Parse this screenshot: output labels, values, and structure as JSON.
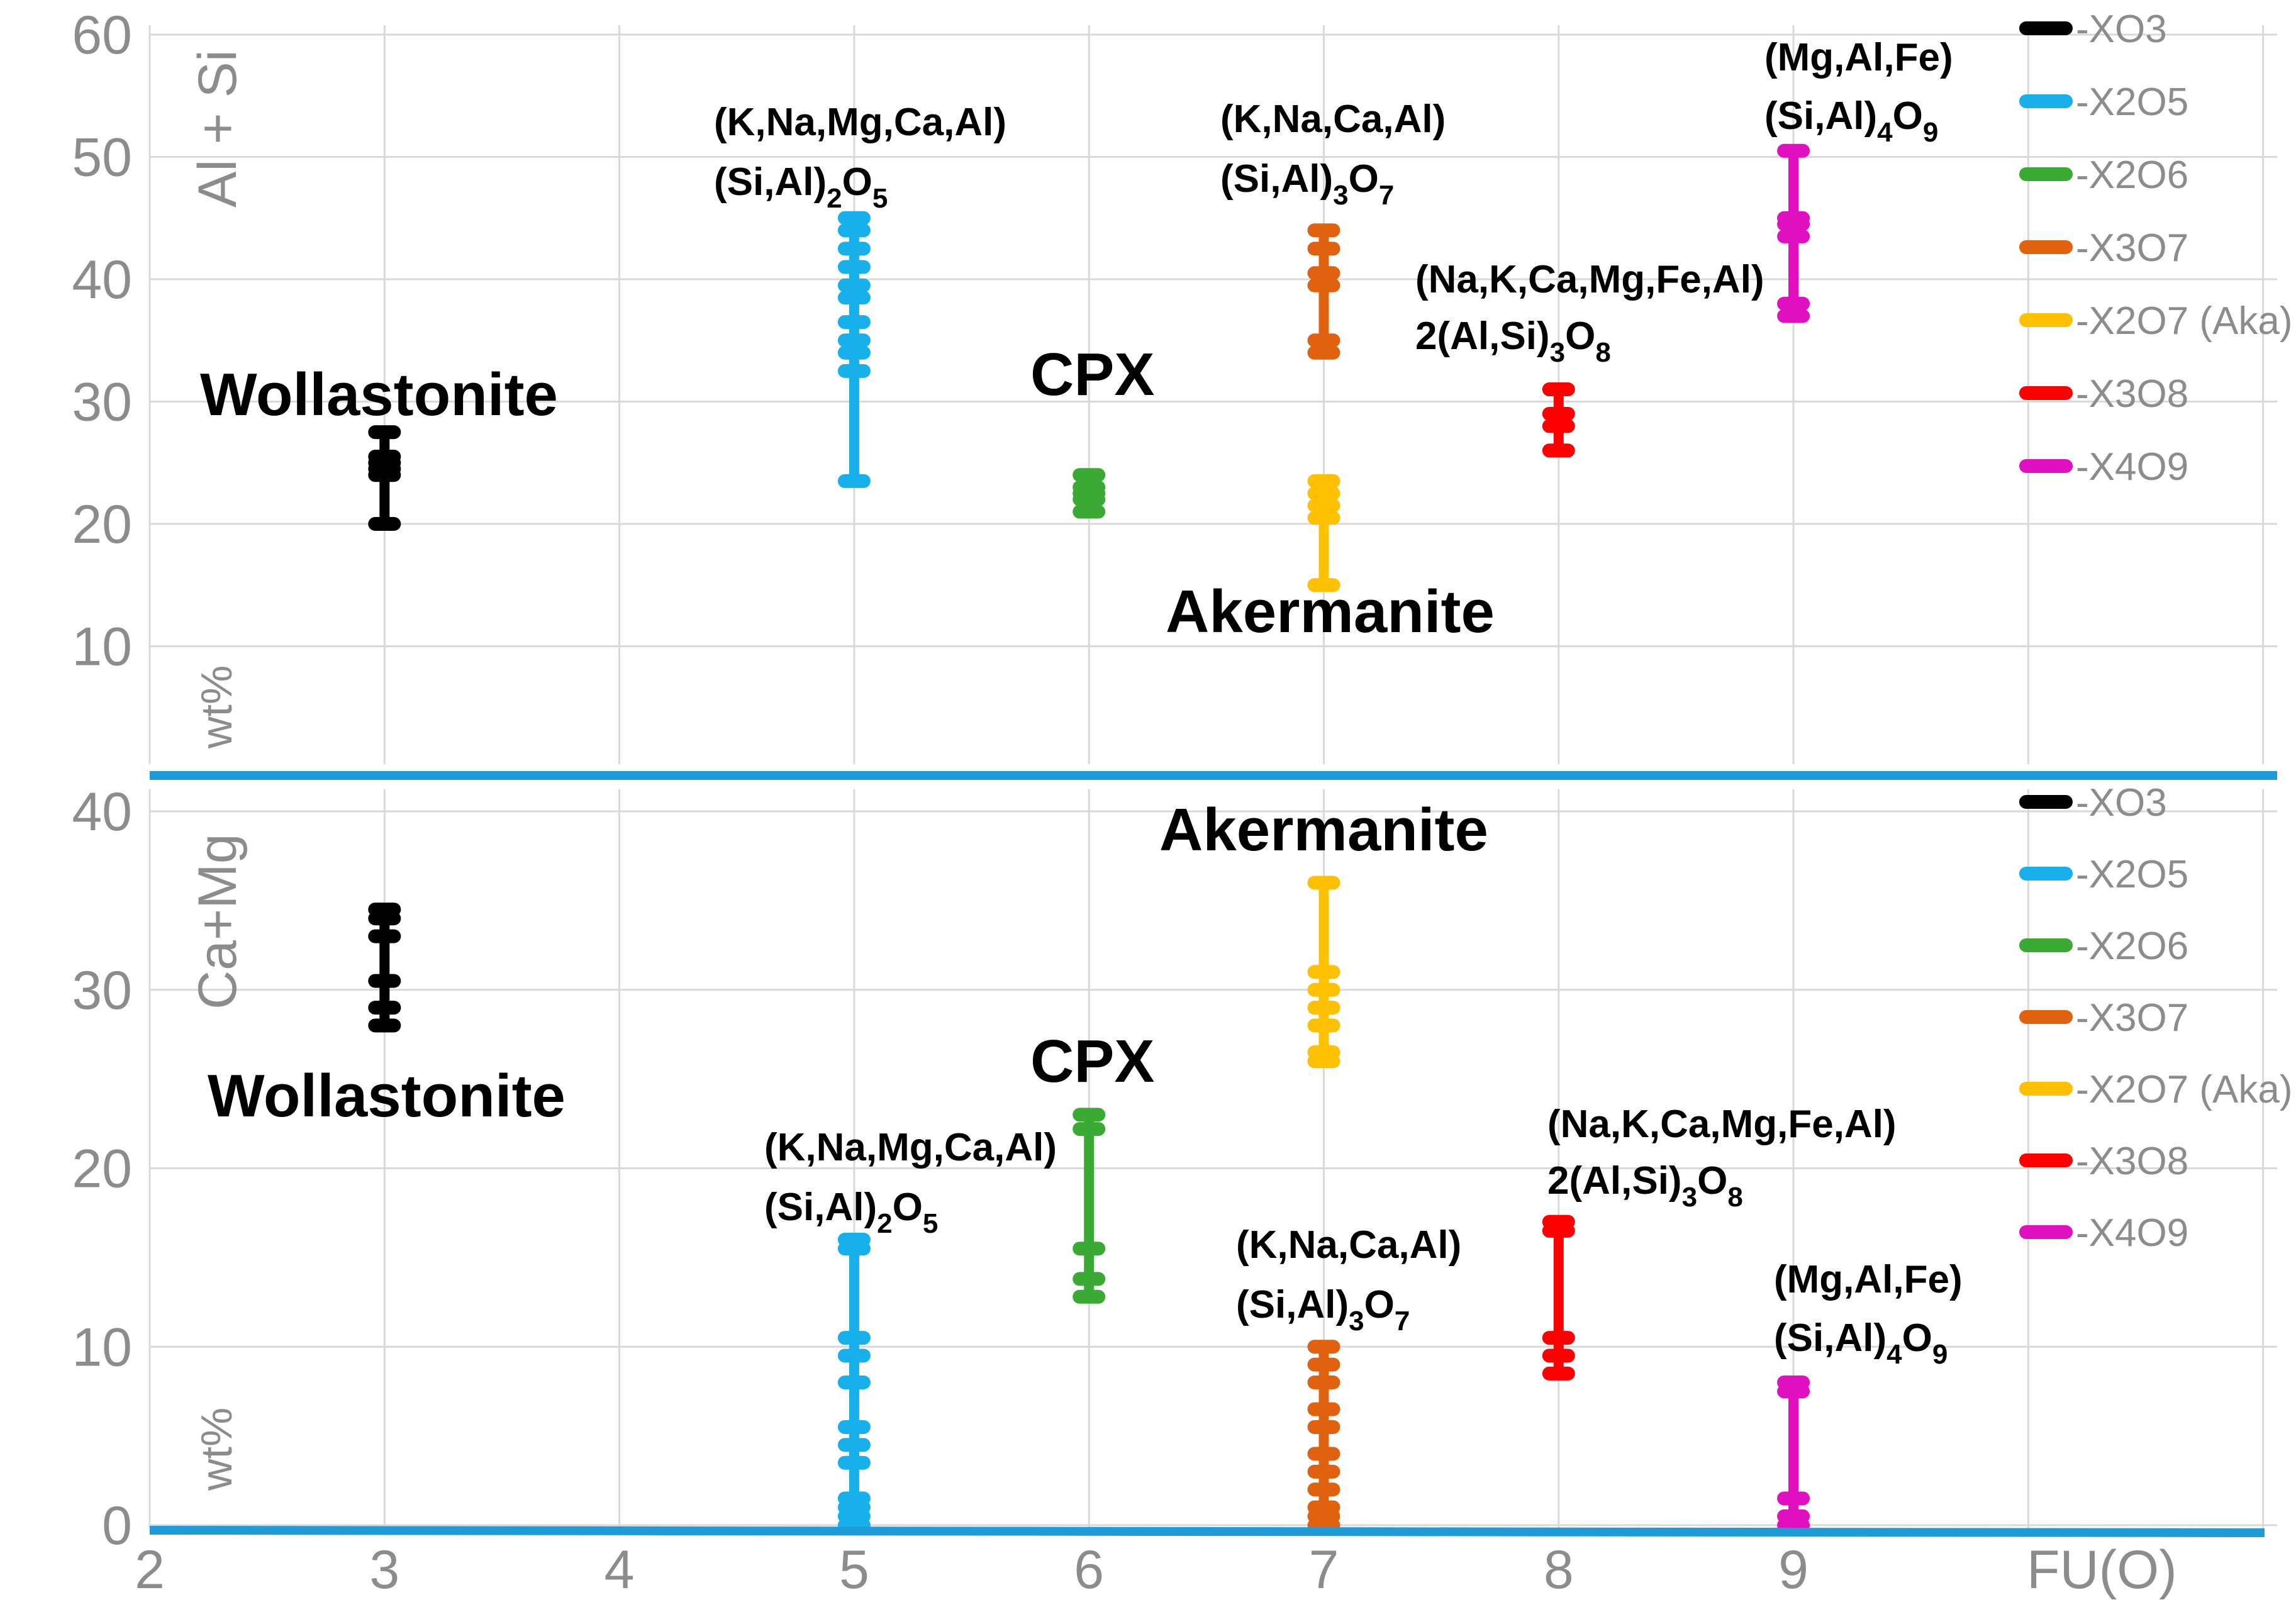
{
  "chart_data": [
    {
      "type": "scatter",
      "panel": "top",
      "ylabel": "Al + Si",
      "unit_label": "wt%",
      "xlabel": "FU(O)",
      "xlim": [
        2,
        11
      ],
      "ylim": [
        0,
        60
      ],
      "x_ticks": [
        "2",
        "3",
        "4",
        "5",
        "6",
        "7",
        "8",
        "9"
      ],
      "y_ticks": [
        "10",
        "20",
        "30",
        "40",
        "50",
        "60"
      ],
      "grid": true,
      "legend_position": "top-right",
      "series": [
        {
          "name": "XO3",
          "color": "#000000",
          "x": 3,
          "range": [
            20,
            27.5
          ],
          "points": [
            20,
            24,
            24.5,
            25,
            25.5,
            27.5
          ]
        },
        {
          "name": "X2O5",
          "color": "#17b0ea",
          "x": 5,
          "range": [
            23.5,
            45
          ],
          "points": [
            23.5,
            32.5,
            34,
            35,
            36.5,
            38.5,
            39.5,
            41,
            42.5,
            44,
            45
          ]
        },
        {
          "name": "X2O6",
          "color": "#3aaa35",
          "x": 6,
          "range": [
            21,
            24
          ],
          "points": [
            21,
            22,
            22.5,
            23,
            24
          ]
        },
        {
          "name": "X3O7",
          "color": "#e1620e",
          "x": 7,
          "range": [
            34,
            44
          ],
          "points": [
            34,
            35,
            39.5,
            40.5,
            42.5,
            44
          ]
        },
        {
          "name": "X2O7 (Aka)",
          "color": "#ffc000",
          "x": 7,
          "range": [
            15,
            23.5
          ],
          "points": [
            15,
            20.5,
            21.5,
            22.5,
            23.5
          ]
        },
        {
          "name": "X3O8",
          "color": "#ff0000",
          "x": 8,
          "range": [
            26,
            31
          ],
          "points": [
            26,
            28,
            29,
            31
          ]
        },
        {
          "name": "X4O9",
          "color": "#e010c0",
          "x": 9,
          "range": [
            37,
            50.5
          ],
          "points": [
            37,
            38,
            43.5,
            44.5,
            45,
            50.5
          ]
        }
      ],
      "annotations": {
        "wollastonite": "Wollastonite",
        "cpx": "CPX",
        "akermanite": "Akermanite",
        "x2o5_line1": "(K,Na,Mg,Ca,Al)",
        "x2o5_line2": "(Si,Al)",
        "x2o5_sub": "2",
        "x2o5_o": "O",
        "x2o5_osub": "5",
        "x3o7_line1": "(K,Na,Ca,Al)",
        "x3o7_line2": "(Si,Al)",
        "x3o7_sub": "3",
        "x3o7_o": "O",
        "x3o7_osub": "7",
        "x3o8_line1": "(Na,K,Ca,Mg,Fe,Al)",
        "x3o8_line2": "2(Al,Si)",
        "x3o8_sub": "3",
        "x3o8_o": "O",
        "x3o8_osub": "8",
        "x4o9_line1": "(Mg,Al,Fe)",
        "x4o9_line2": "(Si,Al)",
        "x4o9_sub": "4",
        "x4o9_o": "O",
        "x4o9_osub": "9"
      }
    },
    {
      "type": "scatter",
      "panel": "bottom",
      "ylabel": "Ca+Mg",
      "unit_label": "wt%",
      "xlabel": "FU(O)",
      "xlim": [
        2,
        11
      ],
      "ylim": [
        0,
        40
      ],
      "x_ticks": [
        "2",
        "3",
        "4",
        "5",
        "6",
        "7",
        "8",
        "9"
      ],
      "y_ticks": [
        "0",
        "10",
        "20",
        "30",
        "40"
      ],
      "grid": true,
      "legend_position": "top-right",
      "series": [
        {
          "name": "XO3",
          "color": "#000000",
          "x": 3,
          "range": [
            28,
            34.5
          ],
          "points": [
            28,
            29,
            30.5,
            33,
            34,
            34.5
          ]
        },
        {
          "name": "X2O5",
          "color": "#17b0ea",
          "x": 5,
          "range": [
            0,
            16
          ],
          "points": [
            0,
            0.5,
            1,
            1.5,
            3.5,
            4.5,
            5.5,
            8,
            9.5,
            10.5,
            15.5,
            16
          ]
        },
        {
          "name": "X2O6",
          "color": "#3aaa35",
          "x": 6,
          "range": [
            12.8,
            23
          ],
          "points": [
            12.8,
            13.8,
            15.5,
            22.2,
            23
          ]
        },
        {
          "name": "X3O7",
          "color": "#e1620e",
          "x": 7,
          "range": [
            0,
            10
          ],
          "points": [
            0,
            0.5,
            1,
            2,
            3,
            4,
            5.5,
            6.5,
            8,
            9,
            10
          ]
        },
        {
          "name": "X2O7 (Aka)",
          "color": "#ffc000",
          "x": 7,
          "range": [
            26,
            36
          ],
          "points": [
            26,
            26.5,
            28,
            29,
            30,
            31,
            36
          ]
        },
        {
          "name": "X3O8",
          "color": "#ff0000",
          "x": 8,
          "range": [
            8.5,
            17
          ],
          "points": [
            8.5,
            9.5,
            10.5,
            16.5,
            17
          ]
        },
        {
          "name": "X4O9",
          "color": "#e010c0",
          "x": 9,
          "range": [
            0,
            8
          ],
          "points": [
            0,
            0.5,
            1.5,
            7.5,
            8
          ]
        }
      ],
      "annotations": {
        "wollastonite": "Wollastonite",
        "cpx": "CPX",
        "akermanite": "Akermanite",
        "x2o5_line1": "(K,Na,Mg,Ca,Al)",
        "x2o5_line2": "(Si,Al)",
        "x2o5_sub": "2",
        "x2o5_o": "O",
        "x2o5_osub": "5",
        "x3o7_line1": "(K,Na,Ca,Al)",
        "x3o7_line2": "(Si,Al)",
        "x3o7_sub": "3",
        "x3o7_o": "O",
        "x3o7_osub": "7",
        "x3o8_line1": "(Na,K,Ca,Mg,Fe,Al)",
        "x3o8_line2": "2(Al,Si)",
        "x3o8_sub": "3",
        "x3o8_o": "O",
        "x3o8_osub": "8",
        "x4o9_line1": "(Mg,Al,Fe)",
        "x4o9_line2": "(Si,Al)",
        "x4o9_sub": "4",
        "x4o9_o": "O",
        "x4o9_osub": "9"
      }
    }
  ]
}
